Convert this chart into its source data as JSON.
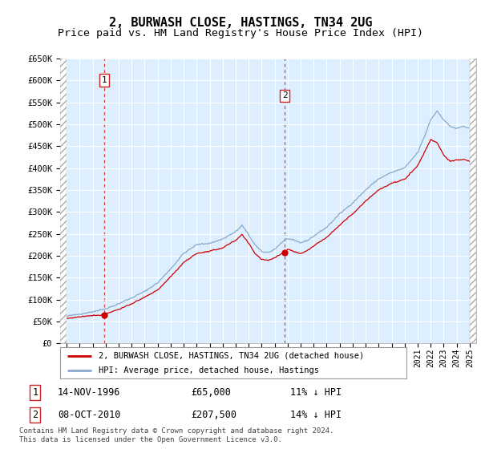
{
  "title": "2, BURWASH CLOSE, HASTINGS, TN34 2UG",
  "subtitle": "Price paid vs. HM Land Registry's House Price Index (HPI)",
  "ylim": [
    0,
    650000
  ],
  "yticks": [
    0,
    50000,
    100000,
    150000,
    200000,
    250000,
    300000,
    350000,
    400000,
    450000,
    500000,
    550000,
    600000,
    650000
  ],
  "ytick_labels": [
    "£0",
    "£50K",
    "£100K",
    "£150K",
    "£200K",
    "£250K",
    "£300K",
    "£350K",
    "£400K",
    "£450K",
    "£500K",
    "£550K",
    "£600K",
    "£650K"
  ],
  "xmin": 1993.5,
  "xmax": 2025.5,
  "data_xmin": 1994.0,
  "data_xmax": 2025.0,
  "purchase1_x": 1996.88,
  "purchase1_y": 65000,
  "purchase1_label": "1",
  "purchase1_date": "14-NOV-1996",
  "purchase1_price": "£65,000",
  "purchase1_hpi": "11% ↓ HPI",
  "purchase2_x": 2010.77,
  "purchase2_y": 207500,
  "purchase2_label": "2",
  "purchase2_date": "08-OCT-2010",
  "purchase2_price": "£207,500",
  "purchase2_hpi": "14% ↓ HPI",
  "line1_color": "#cc0000",
  "line2_color": "#88aacc",
  "marker_color": "#cc0000",
  "background_color": "#ddeeff",
  "legend1": "2, BURWASH CLOSE, HASTINGS, TN34 2UG (detached house)",
  "legend2": "HPI: Average price, detached house, Hastings",
  "footer": "Contains HM Land Registry data © Crown copyright and database right 2024.\nThis data is licensed under the Open Government Licence v3.0.",
  "title_fontsize": 11,
  "subtitle_fontsize": 9.5
}
